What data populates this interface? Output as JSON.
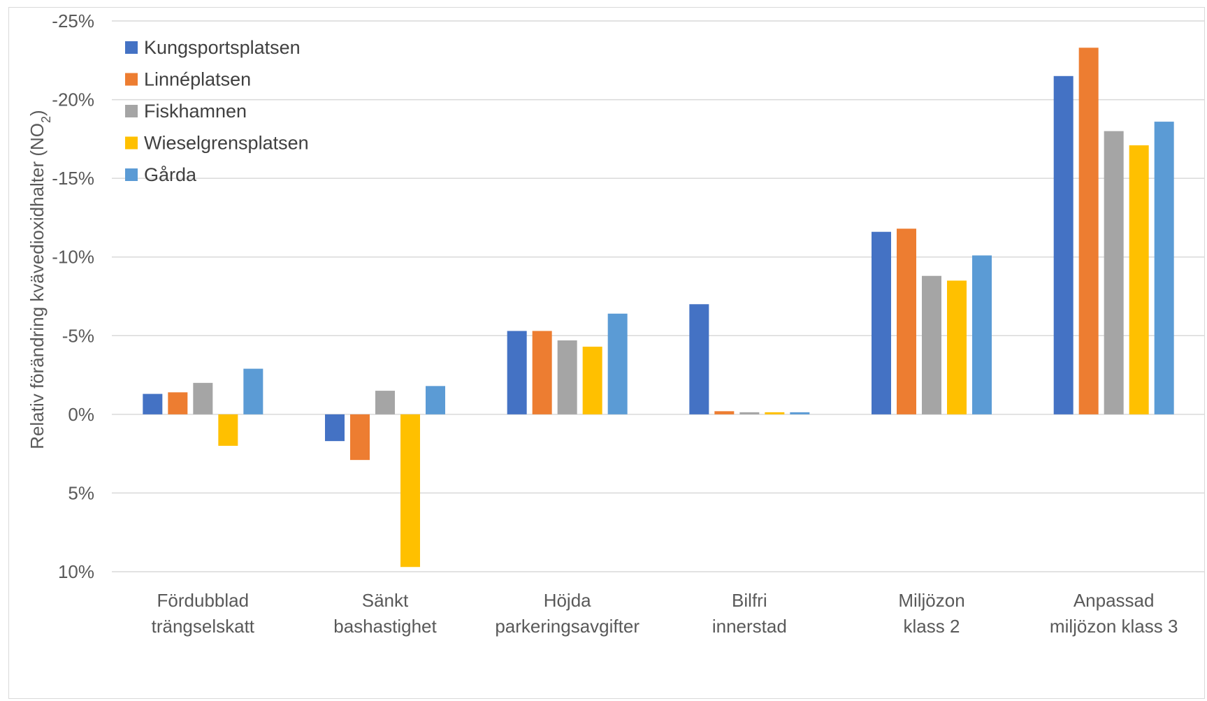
{
  "chart_data": {
    "type": "bar",
    "ylabel": "Relativ förändring kvävedioxidhalter (NO",
    "ylabel_sub": "2",
    "ylabel_close": ")",
    "y_axis_inverted": true,
    "ylim": [
      10,
      -25
    ],
    "yticks": [
      -25,
      -20,
      -15,
      -10,
      -5,
      0,
      5,
      10
    ],
    "ytick_labels": [
      "-25%",
      "-20%",
      "-15%",
      "-10%",
      "-5%",
      "0%",
      "5%",
      "10%"
    ],
    "grid": true,
    "legend_position": "top-left",
    "categories": [
      [
        "Fördubblad",
        "trängselskatt"
      ],
      [
        "Sänkt",
        "bashastighet"
      ],
      [
        "Höjda",
        "parkeringsavgifter"
      ],
      [
        "Bilfri",
        "innerstad"
      ],
      [
        "Miljözon",
        "klass 2"
      ],
      [
        "Anpassad",
        "miljözon klass 3"
      ]
    ],
    "series": [
      {
        "name": "Kungsportsplatsen",
        "color": "#4472c4",
        "values": [
          -1.3,
          1.7,
          -5.3,
          -7.0,
          -11.6,
          -21.5
        ]
      },
      {
        "name": "Linnéplatsen",
        "color": "#ed7d31",
        "values": [
          -1.4,
          2.9,
          -5.3,
          -0.2,
          -11.8,
          -23.3
        ]
      },
      {
        "name": "Fiskhamnen",
        "color": "#a5a5a5",
        "values": [
          -2.0,
          -1.5,
          -4.7,
          -0.1,
          -8.8,
          -18.0
        ]
      },
      {
        "name": "Wieselgrensplatsen",
        "color": "#ffc000",
        "values": [
          2.0,
          9.7,
          -4.3,
          0.0,
          -8.5,
          -17.1
        ]
      },
      {
        "name": "Gårda",
        "color": "#5b9bd5",
        "values": [
          -2.9,
          -1.8,
          -6.4,
          -0.1,
          -10.1,
          -18.6
        ]
      }
    ]
  }
}
